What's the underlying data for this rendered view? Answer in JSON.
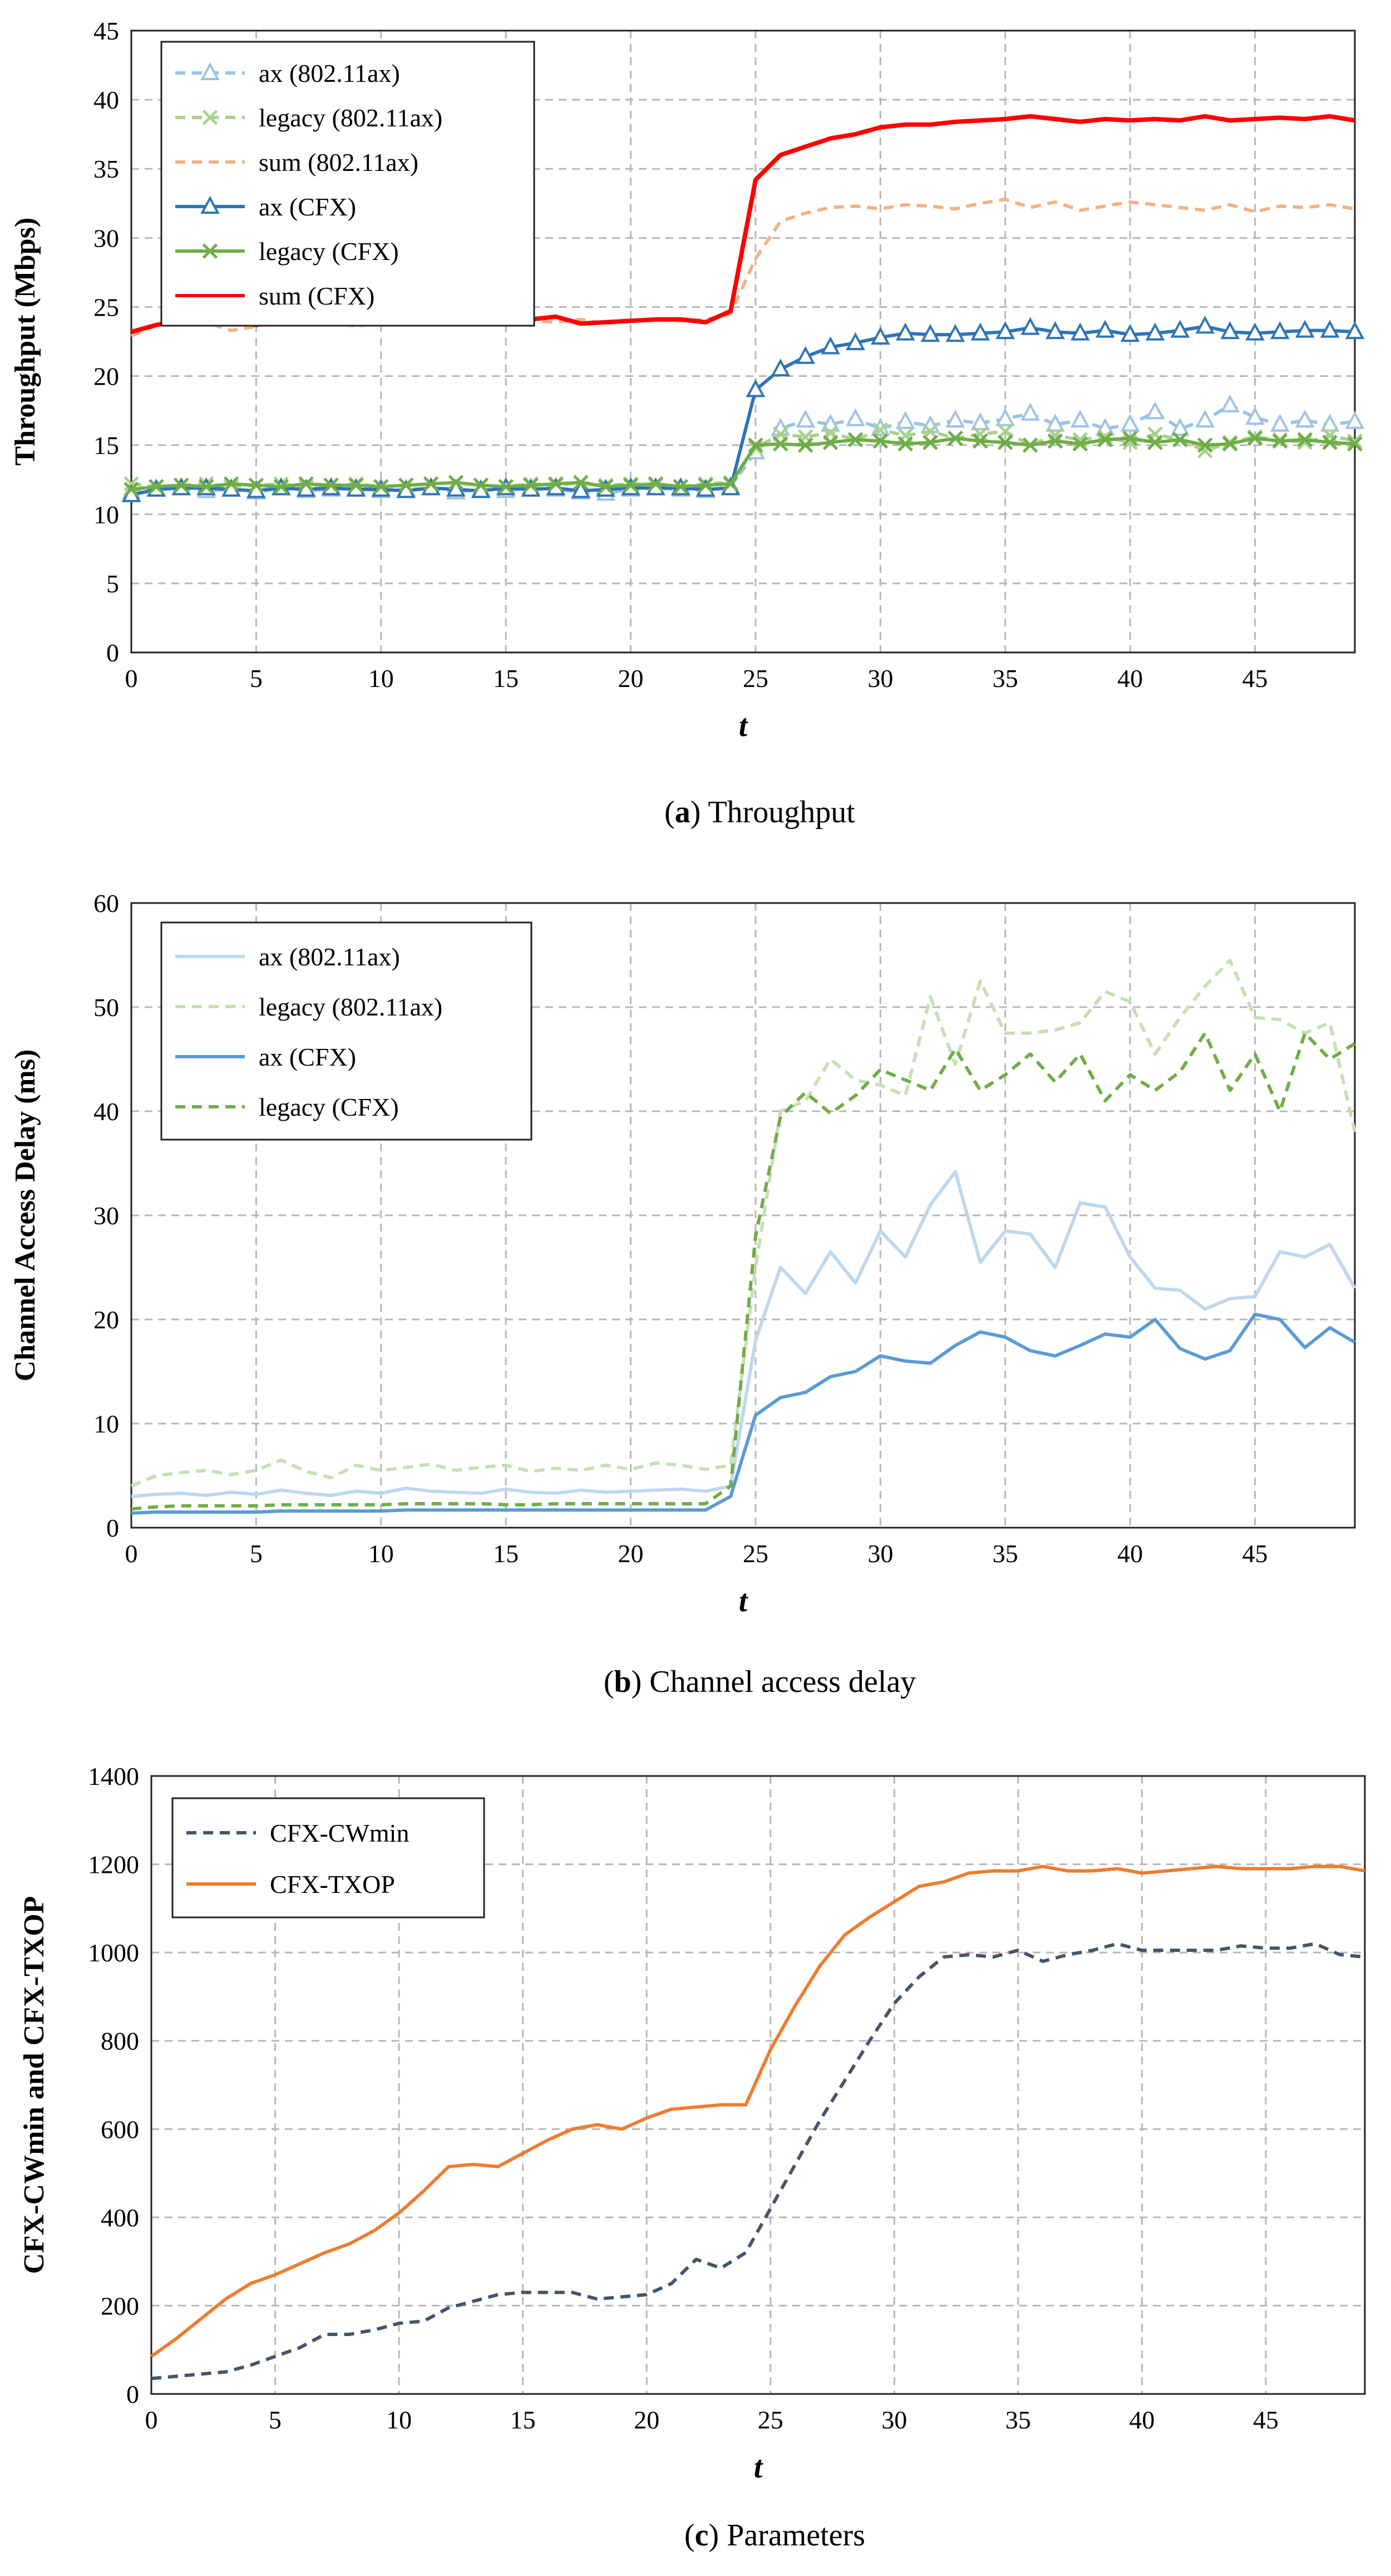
{
  "chart_data": [
    {
      "type": "line",
      "id": "a",
      "caption_letter": "a",
      "caption": "Throughput",
      "ylabel": "Throughput (Mbps)",
      "xlabel": "t",
      "xlim": [
        0,
        49
      ],
      "ylim": [
        0,
        45
      ],
      "xticks": [
        0,
        5,
        10,
        15,
        20,
        25,
        30,
        35,
        40,
        45
      ],
      "yticks": [
        0,
        5,
        10,
        15,
        20,
        25,
        30,
        35,
        40,
        45
      ],
      "grid": true,
      "legend_position": "top-left",
      "series": [
        {
          "name": "ax (802.11ax)",
          "color": "#9dc3e6",
          "dash": "dashed",
          "marker": "triangle-open",
          "values": [
            11.6,
            11.8,
            11.9,
            11.7,
            11.8,
            11.6,
            11.9,
            11.7,
            11.8,
            11.9,
            11.7,
            11.8,
            11.9,
            11.6,
            11.8,
            11.7,
            11.9,
            11.8,
            11.6,
            11.5,
            11.8,
            11.9,
            11.8,
            11.7,
            12.0,
            14.5,
            16.2,
            16.8,
            16.5,
            16.9,
            16.2,
            16.7,
            16.4,
            16.8,
            16.6,
            16.9,
            17.3,
            16.5,
            16.8,
            16.2,
            16.5,
            17.4,
            16.2,
            16.8,
            17.9,
            17.0,
            16.5,
            16.8,
            16.5,
            16.7
          ]
        },
        {
          "name": "legacy (802.11ax)",
          "color": "#a9d18e",
          "dash": "dashed",
          "marker": "x",
          "values": [
            12.2,
            12.0,
            12.1,
            12.2,
            12.0,
            12.1,
            12.2,
            12.0,
            12.1,
            12.2,
            12.0,
            12.1,
            12.2,
            12.3,
            12.1,
            12.0,
            12.2,
            12.1,
            12.3,
            12.1,
            12.2,
            12.1,
            12.0,
            12.2,
            12.3,
            14.8,
            15.8,
            15.6,
            15.9,
            15.4,
            16.1,
            15.7,
            16.0,
            15.5,
            15.8,
            16.0,
            15.0,
            15.7,
            15.4,
            15.6,
            15.2,
            15.8,
            15.4,
            14.6,
            15.2,
            15.6,
            15.4,
            15.2,
            15.7,
            15.3
          ]
        },
        {
          "name": "sum (802.11ax)",
          "color": "#f4b183",
          "dash": "dashed",
          "marker": "none",
          "values": [
            22.9,
            23.7,
            23.8,
            23.9,
            23.3,
            23.6,
            24.0,
            23.8,
            23.9,
            23.6,
            23.9,
            24.1,
            24.3,
            24.2,
            23.9,
            23.8,
            24.0,
            23.9,
            24.1,
            23.8,
            24.0,
            24.1,
            24.0,
            24.1,
            24.5,
            28.5,
            31.2,
            31.8,
            32.2,
            32.3,
            32.1,
            32.4,
            32.3,
            32.1,
            32.5,
            32.8,
            32.2,
            32.6,
            32.0,
            32.3,
            32.6,
            32.4,
            32.2,
            32.0,
            32.4,
            31.9,
            32.3,
            32.2,
            32.4,
            32.1
          ]
        },
        {
          "name": "ax (CFX)",
          "color": "#2e75b6",
          "dash": "solid",
          "marker": "triangle-open",
          "values": [
            11.4,
            11.8,
            11.9,
            11.9,
            11.8,
            11.7,
            11.9,
            11.8,
            11.9,
            11.8,
            11.8,
            11.7,
            11.9,
            11.8,
            11.7,
            11.9,
            11.8,
            11.9,
            11.7,
            11.8,
            11.9,
            11.9,
            11.9,
            11.8,
            11.9,
            19.0,
            20.5,
            21.4,
            22.1,
            22.4,
            22.8,
            23.1,
            23.0,
            23.0,
            23.1,
            23.2,
            23.5,
            23.2,
            23.1,
            23.3,
            23.0,
            23.1,
            23.3,
            23.6,
            23.2,
            23.1,
            23.2,
            23.3,
            23.3,
            23.2
          ]
        },
        {
          "name": "legacy (CFX)",
          "color": "#70ad47",
          "dash": "solid",
          "marker": "x",
          "values": [
            11.8,
            12.0,
            12.1,
            12.0,
            12.2,
            12.1,
            12.0,
            12.2,
            12.1,
            12.1,
            12.0,
            12.1,
            12.2,
            12.3,
            12.1,
            12.0,
            12.1,
            12.2,
            12.3,
            12.0,
            12.1,
            12.2,
            12.0,
            12.1,
            12.2,
            15.0,
            15.1,
            15.0,
            15.2,
            15.4,
            15.3,
            15.1,
            15.2,
            15.5,
            15.3,
            15.2,
            15.0,
            15.3,
            15.1,
            15.4,
            15.5,
            15.2,
            15.4,
            15.0,
            15.1,
            15.5,
            15.3,
            15.4,
            15.2,
            15.1
          ]
        },
        {
          "name": "sum (CFX)",
          "color": "#ff0000",
          "dash": "solid",
          "marker": "none",
          "values": [
            23.2,
            23.7,
            24.0,
            23.9,
            24.1,
            23.7,
            24.0,
            23.9,
            24.2,
            24.0,
            23.9,
            24.1,
            24.2,
            23.9,
            23.9,
            24.0,
            24.1,
            24.3,
            23.8,
            23.9,
            24.0,
            24.1,
            24.1,
            23.9,
            24.7,
            34.2,
            36.0,
            36.6,
            37.2,
            37.5,
            38.0,
            38.2,
            38.2,
            38.4,
            38.5,
            38.6,
            38.8,
            38.6,
            38.4,
            38.6,
            38.5,
            38.6,
            38.5,
            38.8,
            38.5,
            38.6,
            38.7,
            38.6,
            38.8,
            38.5
          ]
        }
      ]
    },
    {
      "type": "line",
      "id": "b",
      "caption_letter": "b",
      "caption": "Channel access delay",
      "ylabel": "Channel Access Delay (ms)",
      "xlabel": "t",
      "xlim": [
        0,
        49
      ],
      "ylim": [
        0,
        60
      ],
      "xticks": [
        0,
        5,
        10,
        15,
        20,
        25,
        30,
        35,
        40,
        45
      ],
      "yticks": [
        0,
        10,
        20,
        30,
        40,
        50,
        60
      ],
      "grid": true,
      "legend_position": "top-left",
      "series": [
        {
          "name": "ax (802.11ax)",
          "color": "#bdd7ee",
          "dash": "solid",
          "marker": "none",
          "values": [
            3.0,
            3.2,
            3.3,
            3.1,
            3.4,
            3.2,
            3.6,
            3.3,
            3.1,
            3.5,
            3.3,
            3.8,
            3.5,
            3.4,
            3.3,
            3.7,
            3.4,
            3.3,
            3.6,
            3.4,
            3.5,
            3.6,
            3.7,
            3.5,
            4.0,
            18.0,
            25.0,
            22.5,
            26.5,
            23.5,
            28.5,
            26.0,
            31.0,
            34.2,
            25.5,
            28.5,
            28.2,
            25.0,
            31.2,
            30.8,
            26.0,
            23.0,
            22.8,
            21.0,
            22.0,
            22.2,
            26.5,
            26.0,
            27.2,
            23.0
          ]
        },
        {
          "name": "legacy (802.11ax)",
          "color": "#c5e0b4",
          "dash": "dashed",
          "marker": "none",
          "values": [
            4.0,
            5.0,
            5.3,
            5.5,
            5.1,
            5.5,
            6.5,
            5.4,
            4.8,
            6.0,
            5.5,
            5.8,
            6.1,
            5.5,
            5.8,
            6.0,
            5.4,
            5.7,
            5.5,
            6.0,
            5.6,
            6.2,
            6.0,
            5.6,
            6.0,
            25.0,
            40.0,
            41.0,
            45.0,
            43.0,
            42.5,
            41.5,
            51.0,
            44.5,
            52.5,
            47.5,
            47.5,
            47.8,
            48.5,
            51.5,
            50.5,
            45.5,
            49.0,
            52.0,
            54.5,
            49.0,
            48.8,
            47.5,
            48.5,
            38.0
          ]
        },
        {
          "name": "ax (CFX)",
          "color": "#5b9bd5",
          "dash": "solid",
          "marker": "none",
          "values": [
            1.4,
            1.5,
            1.5,
            1.5,
            1.5,
            1.5,
            1.6,
            1.6,
            1.6,
            1.6,
            1.6,
            1.7,
            1.7,
            1.7,
            1.7,
            1.7,
            1.7,
            1.7,
            1.7,
            1.7,
            1.7,
            1.7,
            1.7,
            1.7,
            3.0,
            10.8,
            12.5,
            13.0,
            14.5,
            15.0,
            16.5,
            16.0,
            15.8,
            17.5,
            18.8,
            18.3,
            17.0,
            16.5,
            17.5,
            18.6,
            18.3,
            20.0,
            17.2,
            16.2,
            17.0,
            20.5,
            20.0,
            17.3,
            19.2,
            17.8
          ]
        },
        {
          "name": "legacy (CFX)",
          "color": "#70ad47",
          "dash": "dashed",
          "marker": "none",
          "values": [
            1.8,
            2.0,
            2.1,
            2.1,
            2.1,
            2.1,
            2.2,
            2.2,
            2.2,
            2.2,
            2.2,
            2.3,
            2.3,
            2.3,
            2.3,
            2.2,
            2.2,
            2.3,
            2.3,
            2.3,
            2.3,
            2.3,
            2.3,
            2.3,
            4.0,
            28.0,
            39.5,
            41.8,
            39.8,
            41.5,
            44.0,
            43.0,
            42.0,
            46.0,
            42.0,
            43.5,
            45.5,
            42.8,
            45.5,
            41.0,
            43.5,
            42.0,
            43.8,
            47.5,
            42.0,
            45.5,
            40.0,
            47.5,
            45.0,
            46.5
          ]
        }
      ]
    },
    {
      "type": "line",
      "id": "c",
      "caption_letter": "c",
      "caption": "Parameters",
      "ylabel": "CFX-CWmin and CFX-TXOP",
      "xlabel": "t",
      "xlim": [
        0,
        49
      ],
      "ylim": [
        0,
        1400
      ],
      "xticks": [
        0,
        5,
        10,
        15,
        20,
        25,
        30,
        35,
        40,
        45
      ],
      "yticks": [
        0,
        200,
        400,
        600,
        800,
        1000,
        1200,
        1400
      ],
      "grid": true,
      "legend_position": "top-left",
      "series": [
        {
          "name": "CFX-CWmin",
          "color": "#44546a",
          "dash": "dashed",
          "marker": "none",
          "values": [
            35,
            40,
            45,
            50,
            65,
            85,
            105,
            135,
            135,
            145,
            160,
            165,
            195,
            210,
            225,
            230,
            230,
            230,
            215,
            220,
            225,
            250,
            305,
            285,
            320,
            420,
            520,
            620,
            710,
            800,
            885,
            945,
            990,
            995,
            990,
            1005,
            980,
            995,
            1005,
            1020,
            1005,
            1005,
            1005,
            1005,
            1015,
            1010,
            1010,
            1020,
            995,
            990
          ]
        },
        {
          "name": "CFX-TXOP",
          "color": "#ed7d31",
          "dash": "solid",
          "marker": "none",
          "values": [
            85,
            125,
            170,
            215,
            250,
            270,
            295,
            320,
            340,
            370,
            410,
            460,
            515,
            520,
            515,
            545,
            575,
            600,
            610,
            600,
            625,
            645,
            650,
            655,
            655,
            780,
            880,
            970,
            1040,
            1080,
            1115,
            1150,
            1160,
            1180,
            1185,
            1185,
            1195,
            1185,
            1185,
            1190,
            1180,
            1185,
            1190,
            1195,
            1190,
            1190,
            1190,
            1195,
            1195,
            1185
          ]
        }
      ]
    }
  ]
}
